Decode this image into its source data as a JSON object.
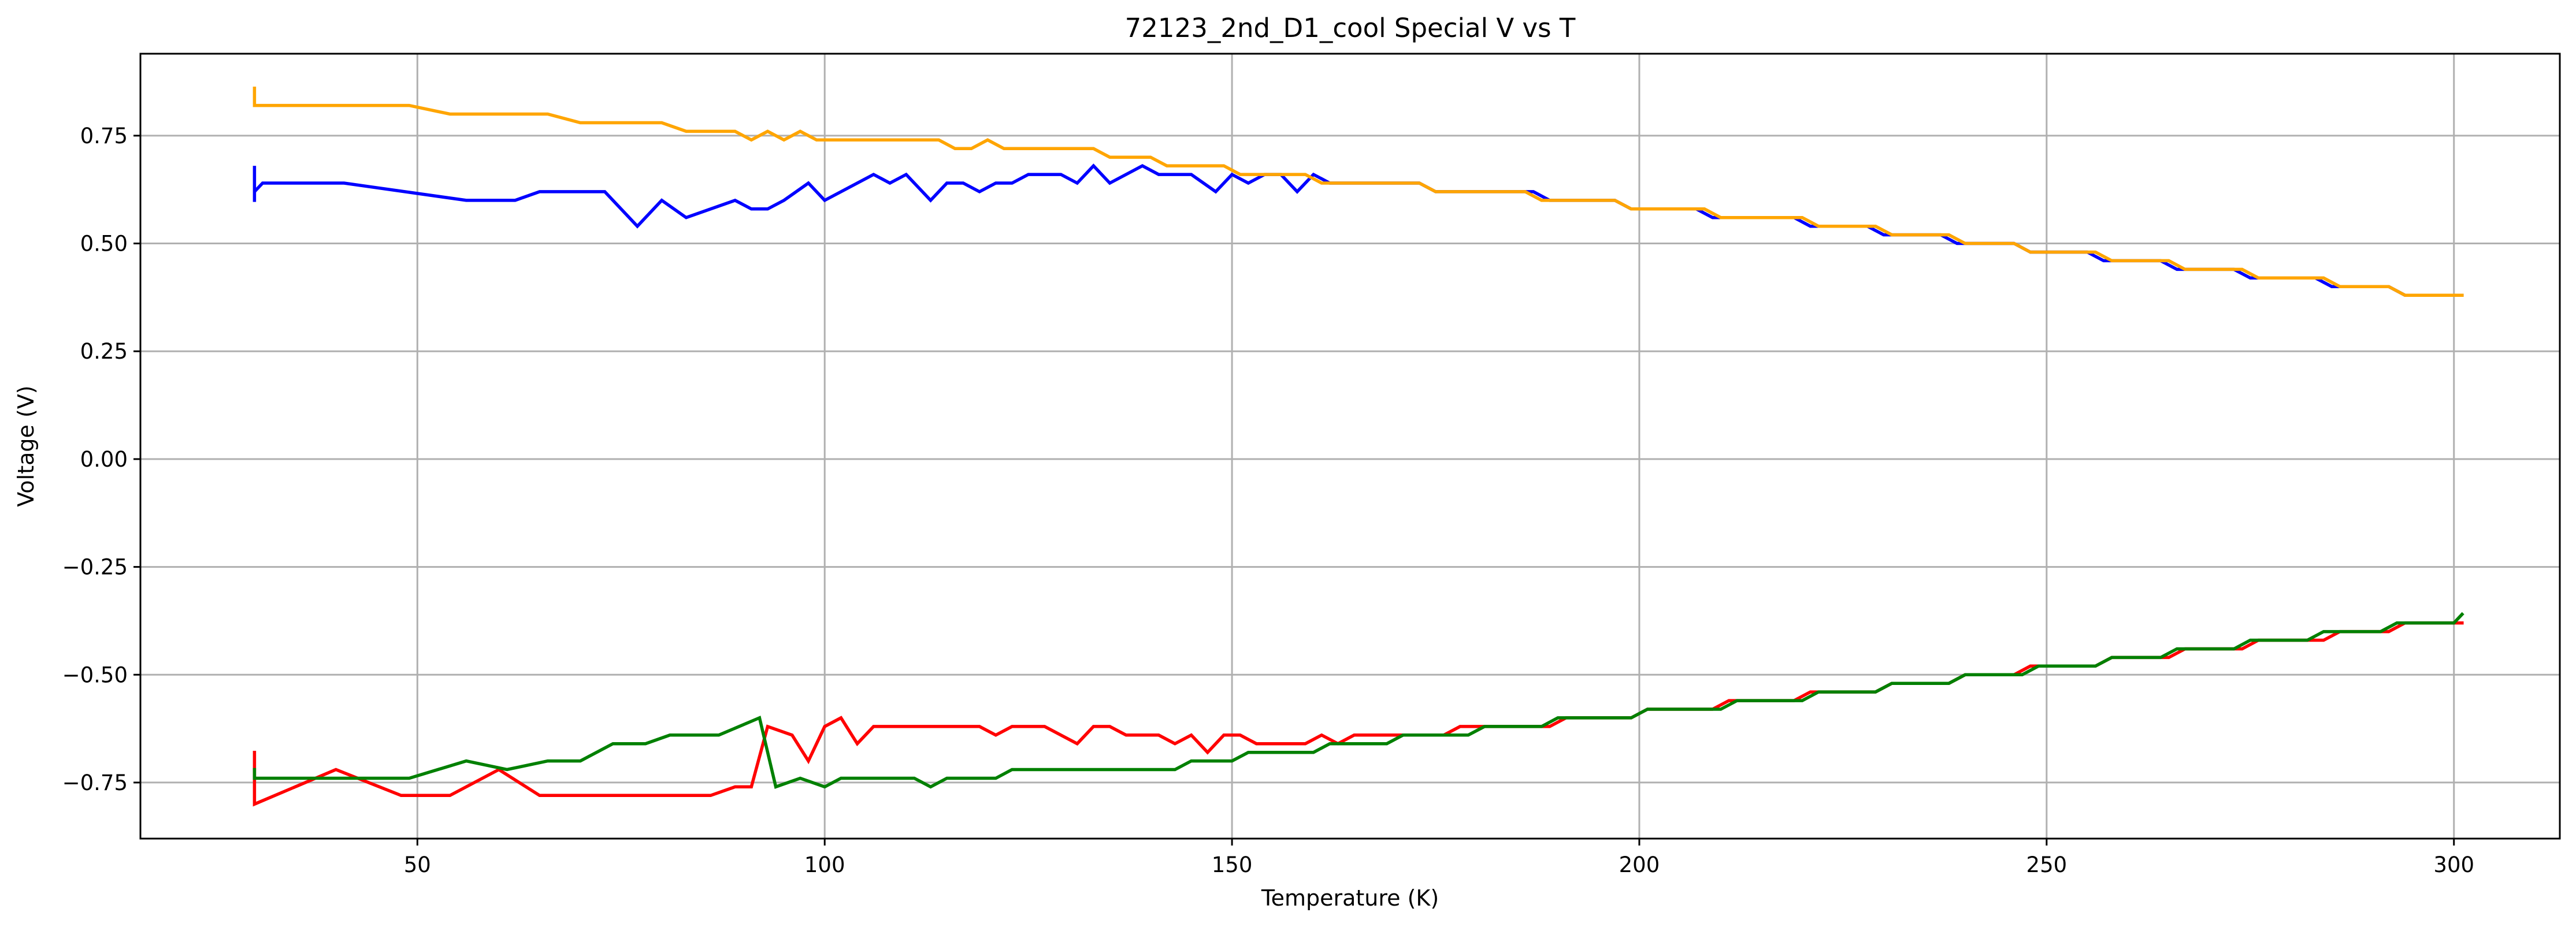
{
  "chart_data": {
    "type": "line",
    "title": "72123_2nd_D1_cool Special V vs T",
    "xlabel": "Temperature (K)",
    "ylabel": "Voltage (V)",
    "xlim": [
      16,
      313
    ],
    "ylim": [
      -0.88,
      0.94
    ],
    "xticks": [
      50,
      100,
      150,
      200,
      250,
      300
    ],
    "yticks": [
      -0.75,
      -0.5,
      -0.25,
      0.0,
      0.25,
      0.5,
      0.75
    ],
    "xtick_labels": [
      "50",
      "100",
      "150",
      "200",
      "250",
      "300"
    ],
    "ytick_labels": [
      "−0.75",
      "−0.50",
      "−0.25",
      "0.00",
      "0.25",
      "0.50",
      "0.75"
    ],
    "grid": true,
    "series": [
      {
        "color": "#0000ff",
        "points": [
          [
            30,
            0.6
          ],
          [
            30,
            0.68
          ],
          [
            30,
            0.62
          ],
          [
            31,
            0.64
          ],
          [
            41,
            0.64
          ],
          [
            56,
            0.6
          ],
          [
            62,
            0.6
          ],
          [
            65,
            0.62
          ],
          [
            73,
            0.62
          ],
          [
            77,
            0.54
          ],
          [
            80,
            0.6
          ],
          [
            83,
            0.56
          ],
          [
            89,
            0.6
          ],
          [
            91,
            0.58
          ],
          [
            93,
            0.58
          ],
          [
            95,
            0.6
          ],
          [
            98,
            0.64
          ],
          [
            100,
            0.6
          ],
          [
            106,
            0.66
          ],
          [
            108,
            0.64
          ],
          [
            110,
            0.66
          ],
          [
            113,
            0.6
          ],
          [
            115,
            0.64
          ],
          [
            117,
            0.64
          ],
          [
            119,
            0.62
          ],
          [
            121,
            0.64
          ],
          [
            123,
            0.64
          ],
          [
            125,
            0.66
          ],
          [
            129,
            0.66
          ],
          [
            131,
            0.64
          ],
          [
            133,
            0.68
          ],
          [
            135,
            0.64
          ],
          [
            139,
            0.68
          ],
          [
            141,
            0.66
          ],
          [
            145,
            0.66
          ],
          [
            148,
            0.62
          ],
          [
            150,
            0.66
          ],
          [
            152,
            0.64
          ],
          [
            154,
            0.66
          ],
          [
            156,
            0.66
          ],
          [
            158,
            0.62
          ],
          [
            160,
            0.66
          ],
          [
            162,
            0.64
          ],
          [
            173,
            0.64
          ],
          [
            175,
            0.62
          ],
          [
            187,
            0.62
          ],
          [
            189,
            0.6
          ],
          [
            197,
            0.6
          ],
          [
            199,
            0.58
          ],
          [
            207,
            0.58
          ],
          [
            209,
            0.56
          ],
          [
            219,
            0.56
          ],
          [
            221,
            0.54
          ],
          [
            228,
            0.54
          ],
          [
            230,
            0.52
          ],
          [
            237,
            0.52
          ],
          [
            239,
            0.5
          ],
          [
            246,
            0.5
          ],
          [
            248,
            0.48
          ],
          [
            255,
            0.48
          ],
          [
            257,
            0.46
          ],
          [
            264,
            0.46
          ],
          [
            266,
            0.44
          ],
          [
            273,
            0.44
          ],
          [
            275,
            0.42
          ],
          [
            283,
            0.42
          ],
          [
            285,
            0.4
          ],
          [
            292,
            0.4
          ],
          [
            294,
            0.38
          ],
          [
            301,
            0.38
          ]
        ]
      },
      {
        "color": "#ffa500",
        "points": [
          [
            30,
            0.86
          ],
          [
            30,
            0.82
          ],
          [
            49,
            0.82
          ],
          [
            54,
            0.8
          ],
          [
            66,
            0.8
          ],
          [
            70,
            0.78
          ],
          [
            80,
            0.78
          ],
          [
            83,
            0.76
          ],
          [
            89,
            0.76
          ],
          [
            91,
            0.74
          ],
          [
            93,
            0.76
          ],
          [
            95,
            0.74
          ],
          [
            97,
            0.76
          ],
          [
            99,
            0.74
          ],
          [
            114,
            0.74
          ],
          [
            116,
            0.72
          ],
          [
            118,
            0.72
          ],
          [
            120,
            0.74
          ],
          [
            122,
            0.72
          ],
          [
            133,
            0.72
          ],
          [
            135,
            0.7
          ],
          [
            140,
            0.7
          ],
          [
            142,
            0.68
          ],
          [
            149,
            0.68
          ],
          [
            151,
            0.66
          ],
          [
            159,
            0.66
          ],
          [
            161,
            0.64
          ],
          [
            173,
            0.64
          ],
          [
            175,
            0.62
          ],
          [
            186,
            0.62
          ],
          [
            188,
            0.6
          ],
          [
            197,
            0.6
          ],
          [
            199,
            0.58
          ],
          [
            208,
            0.58
          ],
          [
            210,
            0.56
          ],
          [
            220,
            0.56
          ],
          [
            222,
            0.54
          ],
          [
            229,
            0.54
          ],
          [
            231,
            0.52
          ],
          [
            238,
            0.52
          ],
          [
            240,
            0.5
          ],
          [
            246,
            0.5
          ],
          [
            248,
            0.48
          ],
          [
            256,
            0.48
          ],
          [
            258,
            0.46
          ],
          [
            265,
            0.46
          ],
          [
            267,
            0.44
          ],
          [
            274,
            0.44
          ],
          [
            276,
            0.42
          ],
          [
            284,
            0.42
          ],
          [
            286,
            0.4
          ],
          [
            292,
            0.4
          ],
          [
            294,
            0.38
          ],
          [
            301,
            0.38
          ]
        ]
      },
      {
        "color": "#ff0000",
        "points": [
          [
            30,
            -0.68
          ],
          [
            30,
            -0.8
          ],
          [
            40,
            -0.72
          ],
          [
            48,
            -0.78
          ],
          [
            54,
            -0.78
          ],
          [
            60,
            -0.72
          ],
          [
            65,
            -0.78
          ],
          [
            86,
            -0.78
          ],
          [
            89,
            -0.76
          ],
          [
            91,
            -0.76
          ],
          [
            93,
            -0.62
          ],
          [
            96,
            -0.64
          ],
          [
            98,
            -0.7
          ],
          [
            100,
            -0.62
          ],
          [
            102,
            -0.6
          ],
          [
            104,
            -0.66
          ],
          [
            106,
            -0.62
          ],
          [
            119,
            -0.62
          ],
          [
            121,
            -0.64
          ],
          [
            123,
            -0.62
          ],
          [
            127,
            -0.62
          ],
          [
            131,
            -0.66
          ],
          [
            133,
            -0.62
          ],
          [
            135,
            -0.62
          ],
          [
            137,
            -0.64
          ],
          [
            141,
            -0.64
          ],
          [
            143,
            -0.66
          ],
          [
            145,
            -0.64
          ],
          [
            147,
            -0.68
          ],
          [
            149,
            -0.64
          ],
          [
            151,
            -0.64
          ],
          [
            153,
            -0.66
          ],
          [
            159,
            -0.66
          ],
          [
            161,
            -0.64
          ],
          [
            163,
            -0.66
          ],
          [
            165,
            -0.64
          ],
          [
            176,
            -0.64
          ],
          [
            178,
            -0.62
          ],
          [
            189,
            -0.62
          ],
          [
            191,
            -0.6
          ],
          [
            199,
            -0.6
          ],
          [
            201,
            -0.58
          ],
          [
            209,
            -0.58
          ],
          [
            211,
            -0.56
          ],
          [
            219,
            -0.56
          ],
          [
            221,
            -0.54
          ],
          [
            229,
            -0.54
          ],
          [
            231,
            -0.52
          ],
          [
            238,
            -0.52
          ],
          [
            240,
            -0.5
          ],
          [
            246,
            -0.5
          ],
          [
            248,
            -0.48
          ],
          [
            256,
            -0.48
          ],
          [
            258,
            -0.46
          ],
          [
            265,
            -0.46
          ],
          [
            267,
            -0.44
          ],
          [
            274,
            -0.44
          ],
          [
            276,
            -0.42
          ],
          [
            284,
            -0.42
          ],
          [
            286,
            -0.4
          ],
          [
            292,
            -0.4
          ],
          [
            294,
            -0.38
          ],
          [
            301,
            -0.38
          ]
        ]
      },
      {
        "color": "#008000",
        "points": [
          [
            30,
            -0.72
          ],
          [
            30,
            -0.74
          ],
          [
            49,
            -0.74
          ],
          [
            56,
            -0.7
          ],
          [
            61,
            -0.72
          ],
          [
            66,
            -0.7
          ],
          [
            70,
            -0.7
          ],
          [
            74,
            -0.66
          ],
          [
            78,
            -0.66
          ],
          [
            81,
            -0.64
          ],
          [
            87,
            -0.64
          ],
          [
            92,
            -0.6
          ],
          [
            94,
            -0.76
          ],
          [
            97,
            -0.74
          ],
          [
            100,
            -0.76
          ],
          [
            102,
            -0.74
          ],
          [
            111,
            -0.74
          ],
          [
            113,
            -0.76
          ],
          [
            115,
            -0.74
          ],
          [
            121,
            -0.74
          ],
          [
            123,
            -0.72
          ],
          [
            143,
            -0.72
          ],
          [
            145,
            -0.7
          ],
          [
            150,
            -0.7
          ],
          [
            152,
            -0.68
          ],
          [
            160,
            -0.68
          ],
          [
            162,
            -0.66
          ],
          [
            169,
            -0.66
          ],
          [
            171,
            -0.64
          ],
          [
            179,
            -0.64
          ],
          [
            181,
            -0.62
          ],
          [
            188,
            -0.62
          ],
          [
            190,
            -0.6
          ],
          [
            199,
            -0.6
          ],
          [
            201,
            -0.58
          ],
          [
            210,
            -0.58
          ],
          [
            212,
            -0.56
          ],
          [
            220,
            -0.56
          ],
          [
            222,
            -0.54
          ],
          [
            229,
            -0.54
          ],
          [
            231,
            -0.52
          ],
          [
            238,
            -0.52
          ],
          [
            240,
            -0.5
          ],
          [
            247,
            -0.5
          ],
          [
            249,
            -0.48
          ],
          [
            256,
            -0.48
          ],
          [
            258,
            -0.46
          ],
          [
            264,
            -0.46
          ],
          [
            266,
            -0.44
          ],
          [
            273,
            -0.44
          ],
          [
            275,
            -0.42
          ],
          [
            282,
            -0.42
          ],
          [
            284,
            -0.4
          ],
          [
            291,
            -0.4
          ],
          [
            293,
            -0.38
          ],
          [
            300,
            -0.38
          ],
          [
            301,
            -0.36
          ]
        ]
      }
    ]
  }
}
